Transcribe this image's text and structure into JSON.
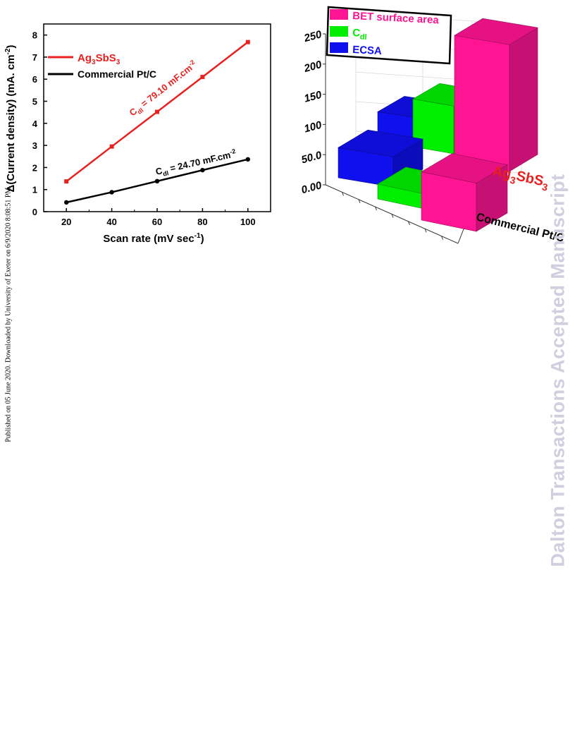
{
  "side_note": "Published on 05 June 2020. Downloaded by University of Exeter on 6/9/2020 8:08:51 PM.",
  "watermark": "Dalton Transactions Accepted Manuscript",
  "colors": {
    "ag": "#e8201f",
    "pt": "#000000",
    "bet": "#ff1493",
    "cdl": "#00ee00",
    "ecsa": "#1010ee"
  },
  "chart_data": [
    {
      "type": "line",
      "xlabel_main": "Scan rate (mV sec",
      "xlabel_sup": "-1",
      "xlabel_end": ")",
      "ylabel_main": "Δ(Current density) (mA. cm",
      "ylabel_sup": "-2",
      "ylabel_end": ")",
      "xlim": [
        10,
        110
      ],
      "ylim": [
        0,
        8.5
      ],
      "xticks": [
        20,
        40,
        60,
        80,
        100
      ],
      "yticks": [
        0,
        1,
        2,
        3,
        4,
        5,
        6,
        7,
        8
      ],
      "legend": "top-left",
      "series": [
        {
          "name_main": "Ag",
          "name_sub1": "3",
          "name_mid": "SbS",
          "name_sub2": "3",
          "color": "#e8201f",
          "x": [
            20,
            40,
            60,
            80,
            100
          ],
          "y": [
            1.37,
            2.95,
            4.52,
            6.1,
            7.68
          ]
        },
        {
          "name": "Commercial Pt/C",
          "color": "#000000",
          "x": [
            20,
            40,
            60,
            80,
            100
          ],
          "y": [
            0.42,
            0.88,
            1.38,
            1.88,
            2.37
          ]
        }
      ],
      "annotations": {
        "ag_prefix": "C",
        "ag_sub": "dl",
        "ag_value": " = 79.10 mF.cm",
        "ag_sup": "-2",
        "pt_prefix": "C",
        "pt_sub": "dl",
        "pt_value": " = 24.70 mF.cm",
        "pt_sup": "-2"
      }
    },
    {
      "type": "bar",
      "subtype": "3d",
      "zticks": [
        "0.00",
        "50.0",
        "100",
        "150",
        "200",
        "250"
      ],
      "zlim": [
        0,
        250
      ],
      "legend": "top-left",
      "series": [
        {
          "name": "BET surface area",
          "color": "#ff1493",
          "values": {
            "Ag3SbS3": 210,
            "Commercial Pt/C": 80
          }
        },
        {
          "name_main": "C",
          "name_sub": "dl",
          "color": "#00ee00",
          "values": {
            "Ag3SbS3": 79.1,
            "Commercial Pt/C": 24.7
          }
        },
        {
          "name": "ECSA",
          "color": "#1010ee",
          "values": {
            "Ag3SbS3": 45,
            "Commercial Pt/C": 50
          }
        }
      ],
      "categories": {
        "ag_main": "Ag",
        "ag_sub1": "3",
        "ag_mid": "SbS",
        "ag_sub2": "3",
        "pt": "Commercial Pt/C"
      }
    }
  ]
}
